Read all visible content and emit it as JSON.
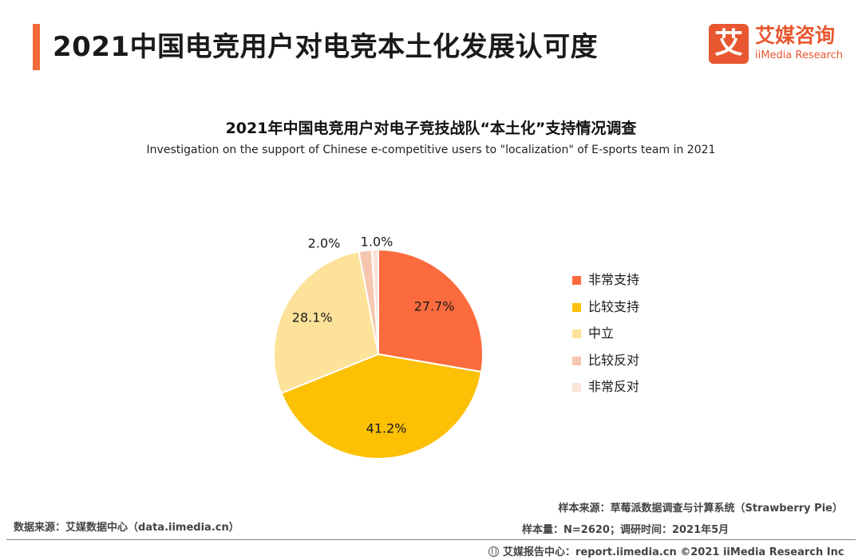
{
  "header": {
    "title": "2021中国电竞用户对电竞本土化发展认可度",
    "logo_mark": "艾",
    "logo_cn": "艾媒咨询",
    "logo_en": "iiMedia Research"
  },
  "chart_data": {
    "type": "pie",
    "title": "2021年中国电竞用户对电子竞技战队“本土化”支持情况调查",
    "subtitle": "Investigation on the support of Chinese e-competitive users to \"localization\" of E-sports team in 2021",
    "categories": [
      "非常支持",
      "比较支持",
      "中立",
      "比较反对",
      "非常反对"
    ],
    "values": [
      27.7,
      41.2,
      28.1,
      2.0,
      1.0
    ],
    "labels": [
      "27.7%",
      "41.2%",
      "28.1%",
      "2.0%",
      "1.0%"
    ],
    "colors": [
      "#fc6b3d",
      "#fcc005",
      "#fde29a",
      "#f6c7ae",
      "#fbe4d8"
    ],
    "legend_position": "right"
  },
  "footer": {
    "data_source": "数据来源：艾媒数据中心（data.iimedia.cn）",
    "sample_source": "样本来源：草莓派数据调查与计算系统（Strawberry Pie）",
    "sample_size": "样本量：N=2620；调研时间：2021年5月",
    "report_center": "艾媒报告中心：report.iimedia.cn ©2021  iiMedia Research  Inc"
  }
}
